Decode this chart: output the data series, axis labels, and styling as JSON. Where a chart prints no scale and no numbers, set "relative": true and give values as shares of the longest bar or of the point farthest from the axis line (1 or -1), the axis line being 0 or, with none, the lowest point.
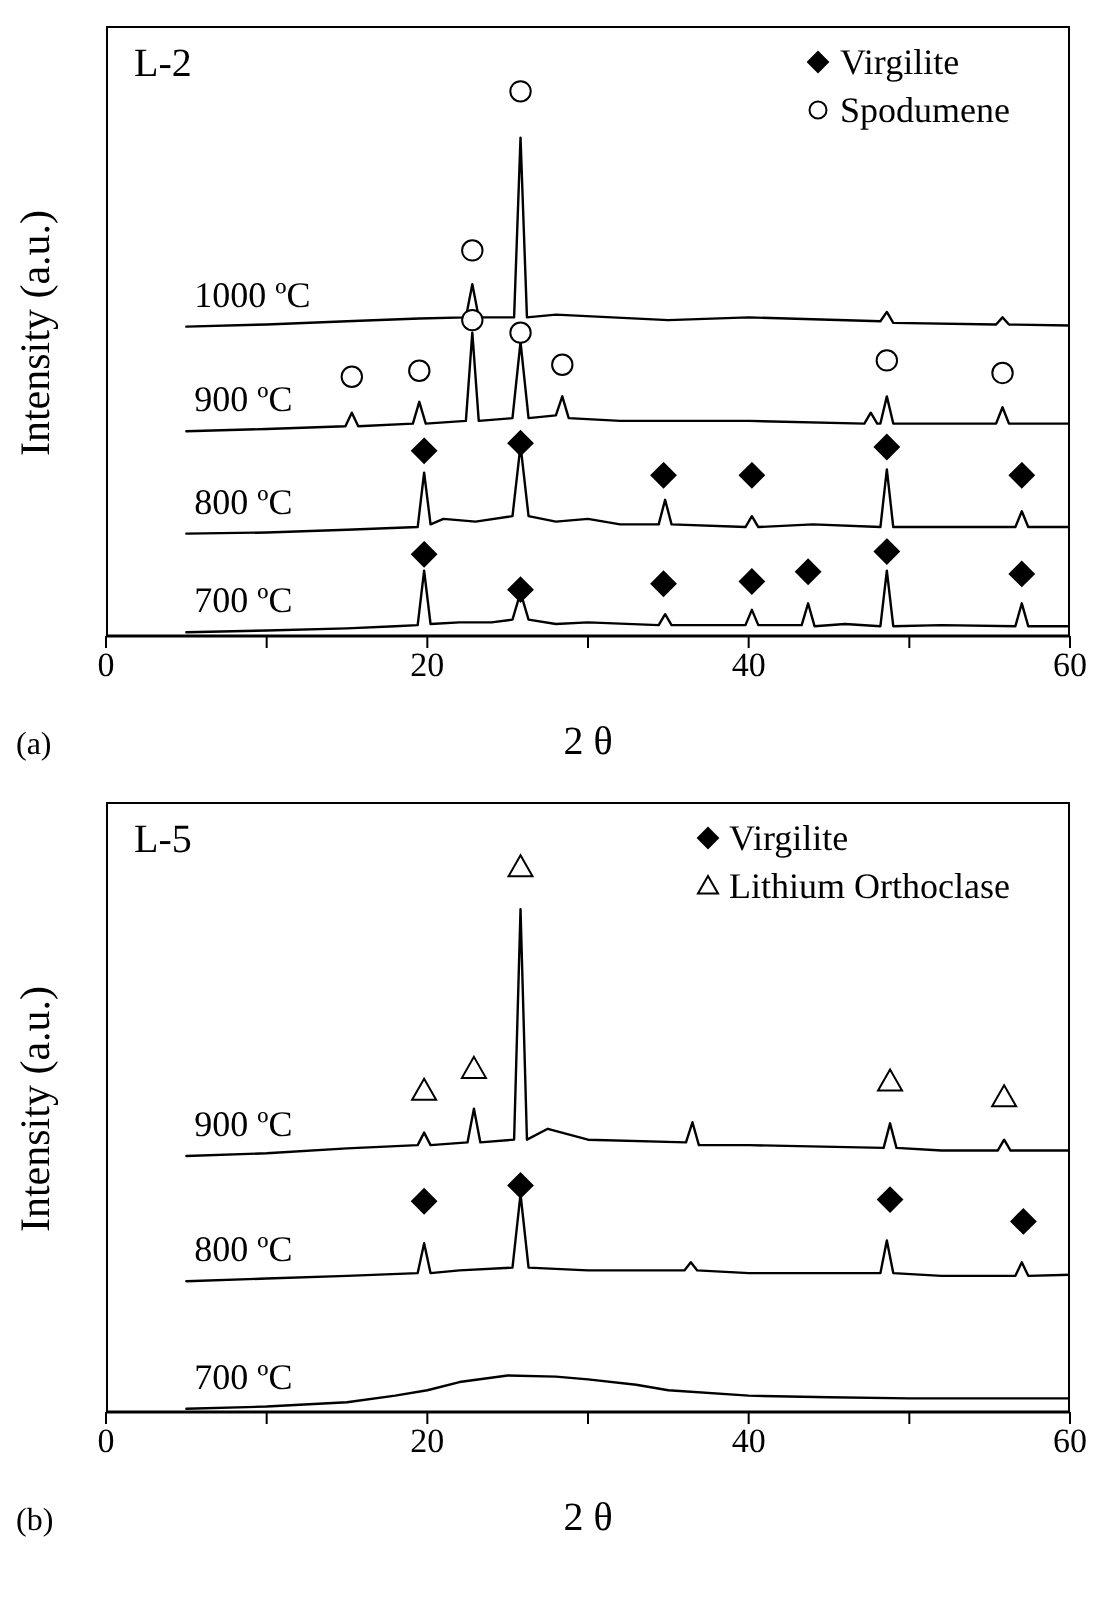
{
  "chart_data": [
    {
      "type": "line",
      "relative": true,
      "xlabel": "2 θ",
      "ylabel": "Intensity (a.u.)",
      "annotations": [
        "L-2",
        "(a)"
      ],
      "legend": "top right",
      "xlim": [
        0,
        60
      ],
      "xticks": [
        0,
        {
          "value": 10,
          "label": null
        },
        20,
        {
          "value": 30,
          "label": null
        },
        40,
        {
          "value": 50,
          "label": null
        },
        60
      ],
      "series": [
        {
          "name": "700 ºC",
          "marker": "none",
          "color": "#000000",
          "x": [
            5,
            10,
            15,
            18,
            19.4,
            19.8,
            20.2,
            22,
            24,
            25.3,
            25.8,
            26.3,
            28,
            30,
            34.4,
            34.8,
            35.2,
            39.8,
            40.2,
            40.6,
            43.3,
            43.7,
            44.1,
            46,
            48.2,
            48.6,
            49,
            52,
            56.6,
            57,
            57.4,
            60
          ],
          "values": [
            0.007,
            0.01,
            0.014,
            0.018,
            0.02,
            0.12,
            0.022,
            0.025,
            0.025,
            0.03,
            0.08,
            0.03,
            0.022,
            0.025,
            0.02,
            0.04,
            0.02,
            0.02,
            0.048,
            0.02,
            0.02,
            0.06,
            0.018,
            0.022,
            0.018,
            0.12,
            0.018,
            0.02,
            0.018,
            0.06,
            0.018,
            0.018
          ]
        },
        {
          "name": "800 ºC",
          "marker": "none",
          "color": "#000000",
          "x": [
            5,
            10,
            15,
            19.4,
            19.8,
            20.2,
            21,
            23,
            25.3,
            25.8,
            26.3,
            28,
            30,
            32,
            34.4,
            34.8,
            35.2,
            39.8,
            40.2,
            40.6,
            44,
            48.2,
            48.6,
            49,
            52,
            56.6,
            57,
            57.4,
            60
          ],
          "values": [
            0.188,
            0.19,
            0.195,
            0.2,
            0.3,
            0.205,
            0.215,
            0.21,
            0.22,
            0.35,
            0.22,
            0.21,
            0.215,
            0.205,
            0.205,
            0.25,
            0.205,
            0.2,
            0.22,
            0.2,
            0.205,
            0.2,
            0.306,
            0.2,
            0.2,
            0.2,
            0.229,
            0.2,
            0.2
          ]
        },
        {
          "name": "900 ºC",
          "marker": "none",
          "color": "#000000",
          "x": [
            5,
            10,
            14.9,
            15.3,
            15.7,
            19.1,
            19.5,
            19.9,
            22.4,
            22.8,
            23.2,
            25.3,
            25.8,
            26.3,
            28,
            28.4,
            28.8,
            32,
            40,
            47.2,
            47.6,
            48,
            48.2,
            48.6,
            49,
            52,
            55.4,
            55.8,
            56.2,
            60
          ],
          "values": [
            0.376,
            0.38,
            0.385,
            0.41,
            0.385,
            0.39,
            0.43,
            0.39,
            0.395,
            0.557,
            0.395,
            0.4,
            0.54,
            0.4,
            0.405,
            0.44,
            0.4,
            0.395,
            0.395,
            0.39,
            0.41,
            0.39,
            0.39,
            0.44,
            0.39,
            0.39,
            0.39,
            0.42,
            0.39,
            0.39
          ]
        },
        {
          "name": "1000 ºC",
          "marker": "none",
          "color": "#000000",
          "x": [
            5,
            10,
            15,
            19.5,
            22.4,
            22.8,
            23.2,
            25.4,
            25.8,
            26.2,
            28,
            35,
            40,
            48.2,
            48.6,
            49,
            55.4,
            55.8,
            56.2,
            60
          ],
          "values": [
            0.568,
            0.572,
            0.578,
            0.583,
            0.585,
            0.646,
            0.585,
            0.585,
            0.915,
            0.585,
            0.59,
            0.58,
            0.585,
            0.578,
            0.595,
            0.575,
            0.572,
            0.585,
            0.572,
            0.57
          ]
        },
        {
          "name": "Virgilite",
          "type": "scatter",
          "marker": "diamond",
          "color": "#000000",
          "x": [
            19.8,
            25.8,
            34.7,
            40.2,
            43.7,
            48.6,
            57.0,
            19.8,
            25.8,
            34.7,
            40.2,
            48.6,
            57.0
          ],
          "values": [
            0.15,
            0.085,
            0.096,
            0.1,
            0.118,
            0.155,
            0.114,
            0.34,
            0.354,
            0.295,
            0.295,
            0.347,
            0.295
          ]
        },
        {
          "name": "Spodumene",
          "type": "scatter",
          "marker": "circle",
          "color": "#000000",
          "x": [
            15.3,
            19.5,
            22.8,
            25.8,
            28.4,
            48.6,
            55.8,
            22.8,
            25.8
          ],
          "values": [
            0.476,
            0.487,
            0.58,
            0.557,
            0.498,
            0.506,
            0.483,
            0.708,
            1
          ]
        }
      ]
    },
    {
      "type": "line",
      "relative": true,
      "xlabel": "2 θ",
      "ylabel": "Intensity (a.u.)",
      "annotations": [
        "L-5",
        "(b)"
      ],
      "legend": "top right",
      "xlim": [
        0,
        60
      ],
      "xticks": [
        0,
        {
          "value": 10,
          "label": null
        },
        20,
        {
          "value": 30,
          "label": null
        },
        40,
        {
          "value": 50,
          "label": null
        },
        60
      ],
      "series": [
        {
          "name": "700 ºC",
          "marker": "none",
          "color": "#000000",
          "x": [
            5,
            10,
            15,
            18,
            20,
            22,
            25,
            28,
            30,
            33,
            35,
            40,
            45,
            50,
            55,
            60
          ],
          "values": [
            0.006,
            0.01,
            0.018,
            0.03,
            0.04,
            0.055,
            0.067,
            0.065,
            0.06,
            0.05,
            0.04,
            0.03,
            0.027,
            0.025,
            0.025,
            0.025
          ]
        },
        {
          "name": "800 ºC",
          "marker": "none",
          "color": "#000000",
          "x": [
            5,
            10,
            15,
            19.4,
            19.8,
            20.2,
            22,
            25.3,
            25.8,
            26.3,
            30,
            36,
            36.4,
            36.8,
            40,
            48.2,
            48.6,
            49,
            52,
            56.6,
            57,
            57.4,
            60
          ],
          "values": [
            0.24,
            0.245,
            0.25,
            0.255,
            0.31,
            0.255,
            0.26,
            0.265,
            0.4,
            0.265,
            0.26,
            0.26,
            0.275,
            0.26,
            0.255,
            0.255,
            0.315,
            0.255,
            0.25,
            0.25,
            0.275,
            0.25,
            0.252
          ]
        },
        {
          "name": "900 ºC",
          "marker": "none",
          "color": "#000000",
          "x": [
            5,
            10,
            15,
            19.4,
            19.8,
            20.2,
            22.5,
            22.9,
            23.3,
            25.4,
            25.8,
            26.2,
            27.5,
            30,
            36.1,
            36.5,
            36.9,
            40,
            48.4,
            48.8,
            49.2,
            52,
            55.5,
            55.9,
            56.3,
            60
          ],
          "values": [
            0.47,
            0.475,
            0.484,
            0.49,
            0.513,
            0.49,
            0.495,
            0.557,
            0.495,
            0.5,
            0.923,
            0.5,
            0.52,
            0.5,
            0.495,
            0.532,
            0.49,
            0.49,
            0.485,
            0.53,
            0.485,
            0.48,
            0.48,
            0.5,
            0.48,
            0.48
          ]
        },
        {
          "name": "Virgilite",
          "type": "scatter",
          "marker": "diamond",
          "color": "#000000",
          "x": [
            19.8,
            25.8,
            48.8,
            57.1
          ],
          "values": [
            0.387,
            0.416,
            0.39,
            0.35
          ]
        },
        {
          "name": "Lithium Orthoclase",
          "type": "scatter",
          "marker": "triangle",
          "color": "#000000",
          "x": [
            19.8,
            22.9,
            25.8,
            48.8,
            55.9
          ],
          "values": [
            0.59,
            0.63,
            1,
            0.607,
            0.578
          ]
        }
      ]
    }
  ]
}
